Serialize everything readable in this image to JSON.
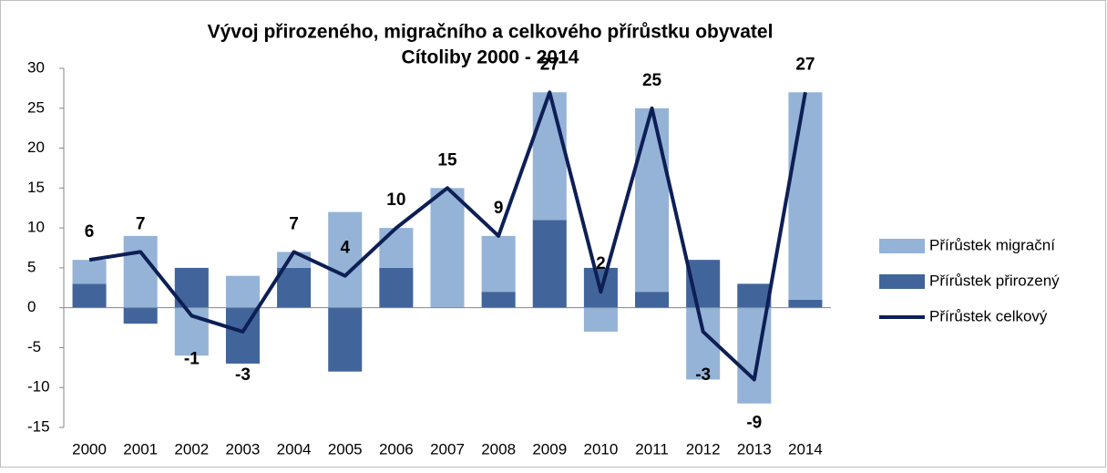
{
  "chart_data": {
    "type": "bar",
    "title": "Vývoj přirozeného, migračního a celkového přírůstku obyvatel",
    "subtitle": "Cítoliby 2000 - 2014",
    "categories": [
      "2000",
      "2001",
      "2002",
      "2003",
      "2004",
      "2005",
      "2006",
      "2007",
      "2008",
      "2009",
      "2010",
      "2011",
      "2012",
      "2013",
      "2014"
    ],
    "series": [
      {
        "name": "Přírůstek migrační",
        "type": "bar",
        "color": "#95b3d7",
        "values": [
          3,
          9,
          -6,
          4,
          2,
          12,
          5,
          15,
          7,
          16,
          -3,
          23,
          -9,
          -12,
          26
        ]
      },
      {
        "name": "Přírůstek přirozený",
        "type": "bar",
        "color": "#41659a",
        "values": [
          3,
          -2,
          5,
          -7,
          5,
          -8,
          5,
          0,
          2,
          11,
          5,
          2,
          6,
          3,
          1
        ]
      },
      {
        "name": "Přírůstek celkový",
        "type": "line",
        "color": "#0d1f55",
        "values": [
          6,
          7,
          -1,
          -3,
          7,
          4,
          10,
          15,
          9,
          27,
          2,
          25,
          -3,
          -9,
          27
        ]
      }
    ],
    "stacked": true,
    "ylim": [
      -15,
      30
    ],
    "yticks": [
      -15,
      -10,
      -5,
      0,
      5,
      10,
      15,
      20,
      25,
      30
    ],
    "legend": "right"
  }
}
